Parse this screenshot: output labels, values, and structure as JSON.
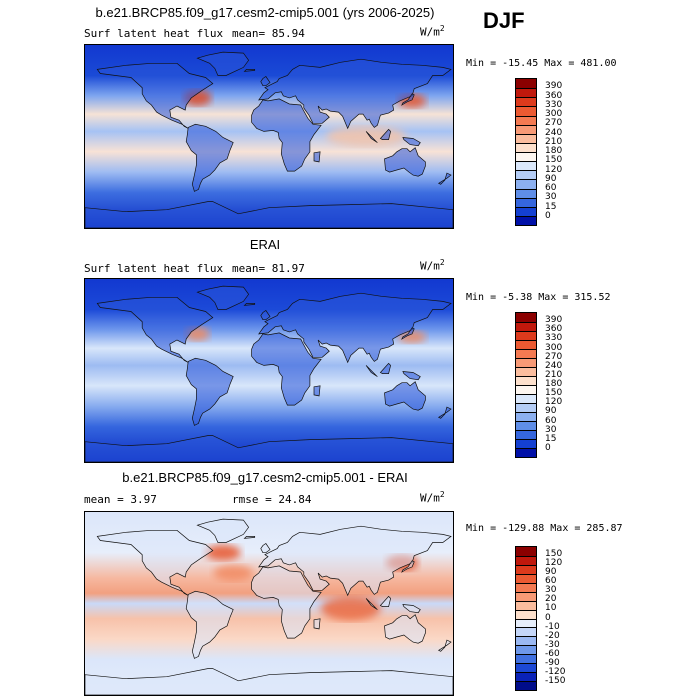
{
  "season": "DJF",
  "units_base": "W/m",
  "units_exp": "2",
  "panels": [
    {
      "title": "b.e21.BRCP85.f09_g17.cesm2-cmip5.001 (yrs 2006-2025)",
      "left_label": "Surf latent heat flux",
      "right_label": "mean=  85.94",
      "minmax": "Min = -15.45 Max = 481.00",
      "levels": [
        "390",
        "360",
        "330",
        "300",
        "270",
        "240",
        "210",
        "180",
        "150",
        "120",
        "90",
        "60",
        "30",
        "15",
        "0"
      ],
      "colors": [
        "#8b0000",
        "#c0180c",
        "#dd3a1c",
        "#ec5a32",
        "#f47a52",
        "#f89a76",
        "#fbbd9e",
        "#fde0cc",
        "#fdf6f0",
        "#dbe8fb",
        "#b4cdf6",
        "#8cb0f0",
        "#5f8ee8",
        "#3566de",
        "#1440d2",
        "#0010a8"
      ],
      "gradient_stops": [
        {
          "lat": 90,
          "color": "#1238d0"
        },
        {
          "lat": 60,
          "color": "#1a4ad6"
        },
        {
          "lat": 40,
          "color": "#7fa6ef"
        },
        {
          "lat": 22,
          "color": "#f6e3d6"
        },
        {
          "lat": 5,
          "color": "#a6c2f4"
        },
        {
          "lat": -15,
          "color": "#f8e2d6"
        },
        {
          "lat": -35,
          "color": "#9fbcf2"
        },
        {
          "lat": -55,
          "color": "#3d6ee0"
        },
        {
          "lat": -90,
          "color": "#0b2cc4"
        }
      ],
      "hotspots": [
        {
          "lon": 140,
          "lat": 35,
          "rx": 14,
          "ry": 7,
          "color": "#e8542a"
        },
        {
          "lon": -70,
          "lat": 38,
          "rx": 14,
          "ry": 8,
          "color": "#e04a22"
        },
        {
          "lon": 95,
          "lat": 0,
          "rx": 40,
          "ry": 10,
          "color": "#f3c4aa"
        }
      ]
    },
    {
      "title": "ERAI",
      "left_label": "Surf latent heat flux",
      "right_label": "mean=  81.97",
      "minmax": "Min =  -5.38 Max = 315.52",
      "levels": [
        "390",
        "360",
        "330",
        "300",
        "270",
        "240",
        "210",
        "180",
        "150",
        "120",
        "90",
        "60",
        "30",
        "15",
        "0"
      ],
      "colors": [
        "#8b0000",
        "#c0180c",
        "#dd3a1c",
        "#ec5a32",
        "#f47a52",
        "#f89a76",
        "#fbbd9e",
        "#fde0cc",
        "#fdf6f0",
        "#dbe8fb",
        "#b4cdf6",
        "#8cb0f0",
        "#5f8ee8",
        "#3566de",
        "#1440d2",
        "#0010a8"
      ],
      "gradient_stops": [
        {
          "lat": 90,
          "color": "#1238d0"
        },
        {
          "lat": 60,
          "color": "#1c4ad8"
        },
        {
          "lat": 40,
          "color": "#6f98ec"
        },
        {
          "lat": 22,
          "color": "#d8e6fa"
        },
        {
          "lat": 5,
          "color": "#9dbbf2"
        },
        {
          "lat": -15,
          "color": "#d8e6fa"
        },
        {
          "lat": -35,
          "color": "#88acef"
        },
        {
          "lat": -55,
          "color": "#3566de"
        },
        {
          "lat": -90,
          "color": "#0b2cc4"
        }
      ],
      "hotspots": [
        {
          "lon": 140,
          "lat": 33,
          "rx": 14,
          "ry": 6,
          "color": "#f08a5e"
        },
        {
          "lon": -70,
          "lat": 36,
          "rx": 12,
          "ry": 7,
          "color": "#f08a5e"
        }
      ]
    },
    {
      "title": "b.e21.BRCP85.f09_g17.cesm2-cmip5.001 - ERAI",
      "left_label": "mean =   3.97",
      "right_label": "rmse =  24.84",
      "minmax": "Min = -129.88 Max = 285.87",
      "levels": [
        "150",
        "120",
        "90",
        "60",
        "30",
        "20",
        "10",
        "0",
        "-10",
        "-20",
        "-30",
        "-60",
        "-90",
        "-120",
        "-150"
      ],
      "colors": [
        "#8b0000",
        "#c0180c",
        "#dd3a1c",
        "#ec5a32",
        "#f47a52",
        "#f89a76",
        "#fbbd9e",
        "#fde0cc",
        "#e6eefb",
        "#c4d6f8",
        "#9ab8f2",
        "#6e98ea",
        "#4070e0",
        "#1c48d4",
        "#0a22b8",
        "#000c8a"
      ],
      "gradient_stops": [
        {
          "lat": 90,
          "color": "#dbe6fa"
        },
        {
          "lat": 50,
          "color": "#e7eefb"
        },
        {
          "lat": 25,
          "color": "#f6b8a0"
        },
        {
          "lat": 10,
          "color": "#f2a080"
        },
        {
          "lat": 0,
          "color": "#c9d9f8"
        },
        {
          "lat": -15,
          "color": "#f7c2aa"
        },
        {
          "lat": -35,
          "color": "#fbd8c6"
        },
        {
          "lat": -55,
          "color": "#dbe6fa"
        },
        {
          "lat": -90,
          "color": "#e4ecfb"
        }
      ],
      "hotspots": [
        {
          "lon": -45,
          "lat": 50,
          "rx": 18,
          "ry": 8,
          "color": "#e8542a"
        },
        {
          "lon": 130,
          "lat": 40,
          "rx": 16,
          "ry": 8,
          "color": "#e04a22"
        },
        {
          "lon": 80,
          "lat": -5,
          "rx": 30,
          "ry": 12,
          "color": "#ec6a40"
        },
        {
          "lon": -35,
          "lat": 30,
          "rx": 20,
          "ry": 8,
          "color": "#f28a62"
        }
      ]
    }
  ]
}
